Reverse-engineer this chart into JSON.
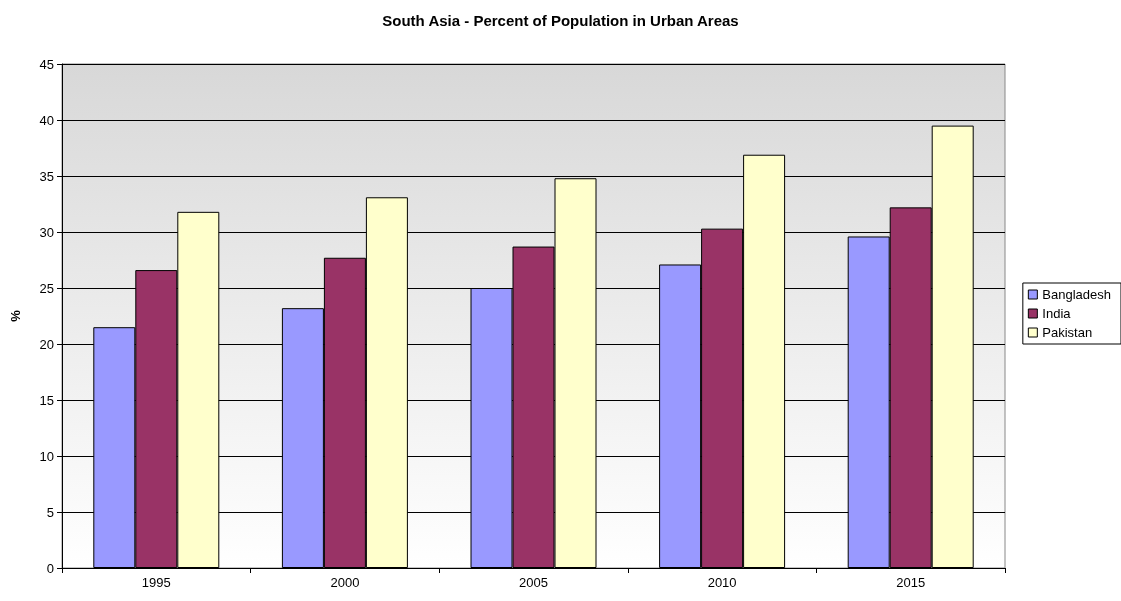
{
  "chart_data": {
    "type": "bar",
    "title": "South Asia - Percent of Population in Urban Areas",
    "ylabel": "%",
    "categories": [
      "1995",
      "2000",
      "2005",
      "2010",
      "2015"
    ],
    "series": [
      {
        "name": "Bangladesh",
        "color": "#9999ff",
        "values": [
          21.5,
          23.2,
          25.0,
          27.1,
          29.6
        ]
      },
      {
        "name": "India",
        "color": "#993366",
        "values": [
          26.6,
          27.7,
          28.7,
          30.3,
          32.2
        ]
      },
      {
        "name": "Pakistan",
        "color": "#ffffcc",
        "values": [
          31.8,
          33.1,
          34.8,
          36.9,
          39.5
        ]
      }
    ],
    "ylim": [
      0,
      45
    ],
    "yticks": [
      0,
      5,
      10,
      15,
      20,
      25,
      30,
      35,
      40,
      45
    ],
    "grid": "y",
    "legend": "right"
  }
}
